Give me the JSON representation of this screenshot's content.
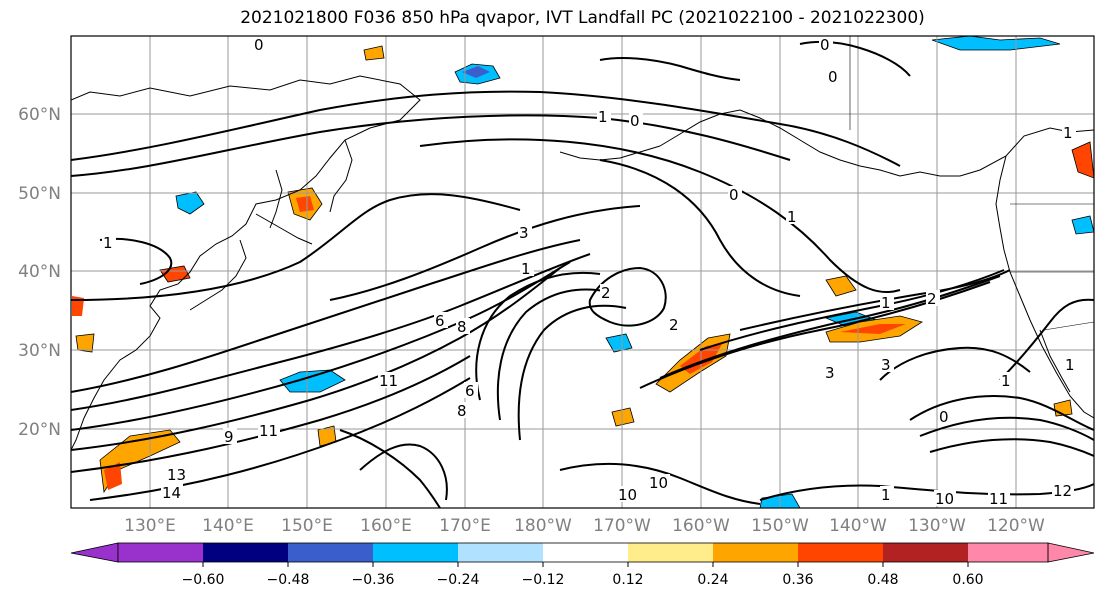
{
  "title": "2021021800 F036 850 hPa qvapor, IVT Landfall PC (2021022100 - 2021022300)",
  "lat_labels": [
    "60°N",
    "50°N",
    "40°N",
    "30°N",
    "20°N"
  ],
  "lon_labels": [
    "130°E",
    "140°E",
    "150°E",
    "160°E",
    "170°E",
    "180°W",
    "170°W",
    "160°W",
    "150°W",
    "140°W",
    "130°W",
    "120°W"
  ],
  "colorbar": {
    "colors": [
      "#9932cc",
      "#000080",
      "#3a5fcd",
      "#00bfff",
      "#b0e2ff",
      "#ffffff",
      "#ffffff",
      "#ffec8b",
      "#ffa500",
      "#ff4500",
      "#b22222",
      "#ff88aa"
    ],
    "tick_labels": [
      "−0.60",
      "−0.48",
      "−0.36",
      "−0.24",
      "−0.12",
      "0.12",
      "0.24",
      "0.36",
      "0.48",
      "0.60"
    ]
  },
  "contour_labels": [
    "0",
    "0",
    "0",
    "0",
    "1",
    "1",
    "1",
    "1",
    "1",
    "1",
    "2",
    "2",
    "3",
    "3",
    "3",
    "6",
    "8",
    "6",
    "8",
    "9",
    "11",
    "11",
    "13",
    "14",
    "10",
    "10",
    "10",
    "11",
    "12",
    "0",
    "0",
    "1",
    "1",
    "1",
    "2"
  ]
}
